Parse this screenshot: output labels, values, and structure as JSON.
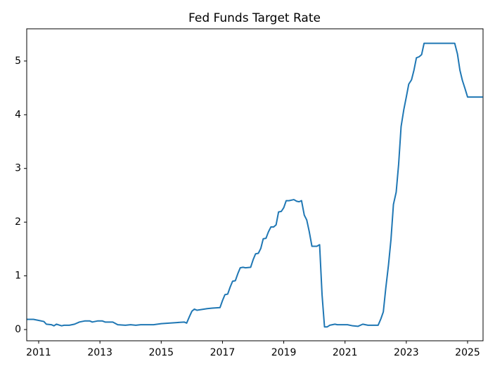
{
  "chart_data": {
    "type": "line",
    "title": "Fed Funds Target Rate",
    "x": [
      2010.62,
      2010.83,
      2011.0,
      2011.17,
      2011.25,
      2011.42,
      2011.5,
      2011.58,
      2011.75,
      2011.83,
      2012.0,
      2012.17,
      2012.33,
      2012.5,
      2012.67,
      2012.75,
      2012.92,
      2013.08,
      2013.17,
      2013.42,
      2013.58,
      2013.83,
      2014.0,
      2014.17,
      2014.33,
      2014.58,
      2014.75,
      2015.0,
      2015.5,
      2015.75,
      2015.83,
      2015.92,
      2016.0,
      2016.08,
      2016.17,
      2016.5,
      2016.67,
      2016.92,
      2017.0,
      2017.08,
      2017.17,
      2017.25,
      2017.33,
      2017.42,
      2017.5,
      2017.58,
      2017.67,
      2017.75,
      2017.92,
      2018.0,
      2018.08,
      2018.17,
      2018.25,
      2018.33,
      2018.42,
      2018.5,
      2018.58,
      2018.67,
      2018.75,
      2018.83,
      2018.92,
      2019.0,
      2019.08,
      2019.17,
      2019.33,
      2019.42,
      2019.5,
      2019.58,
      2019.67,
      2019.75,
      2019.83,
      2019.92,
      2020.0,
      2020.08,
      2020.17,
      2020.25,
      2020.33,
      2020.42,
      2020.5,
      2020.67,
      2020.75,
      2021.0,
      2021.08,
      2021.25,
      2021.42,
      2021.58,
      2021.75,
      2022.0,
      2022.08,
      2022.17,
      2022.25,
      2022.33,
      2022.42,
      2022.5,
      2022.58,
      2022.67,
      2022.75,
      2022.83,
      2022.92,
      2023.0,
      2023.08,
      2023.17,
      2023.25,
      2023.33,
      2023.42,
      2023.5,
      2023.58,
      2024.58,
      2024.67,
      2024.75,
      2024.83,
      2024.92,
      2025.0,
      2025.5
    ],
    "series": [
      {
        "color": "#1f77b4",
        "values": [
          0.19,
          0.19,
          0.17,
          0.15,
          0.1,
          0.09,
          0.07,
          0.1,
          0.07,
          0.08,
          0.08,
          0.1,
          0.14,
          0.16,
          0.16,
          0.14,
          0.16,
          0.16,
          0.14,
          0.14,
          0.09,
          0.08,
          0.09,
          0.08,
          0.09,
          0.09,
          0.09,
          0.11,
          0.13,
          0.14,
          0.12,
          0.24,
          0.34,
          0.38,
          0.36,
          0.39,
          0.4,
          0.41,
          0.54,
          0.65,
          0.66,
          0.79,
          0.9,
          0.91,
          1.04,
          1.15,
          1.16,
          1.15,
          1.16,
          1.3,
          1.41,
          1.42,
          1.51,
          1.69,
          1.7,
          1.82,
          1.91,
          1.91,
          1.95,
          2.19,
          2.2,
          2.27,
          2.4,
          2.4,
          2.42,
          2.39,
          2.38,
          2.4,
          2.13,
          2.04,
          1.83,
          1.55,
          1.55,
          1.55,
          1.58,
          0.65,
          0.05,
          0.05,
          0.08,
          0.1,
          0.09,
          0.09,
          0.09,
          0.07,
          0.06,
          0.1,
          0.08,
          0.08,
          0.08,
          0.2,
          0.33,
          0.77,
          1.21,
          1.68,
          2.33,
          2.56,
          3.08,
          3.78,
          4.1,
          4.33,
          4.57,
          4.65,
          4.83,
          5.06,
          5.08,
          5.12,
          5.33,
          5.33,
          5.13,
          4.83,
          4.64,
          4.48,
          4.33,
          4.33
        ]
      }
    ],
    "xlim": [
      2010.61,
      2025.505
    ],
    "xticks": [
      2011,
      2013,
      2015,
      2017,
      2019,
      2021,
      2023,
      2025
    ],
    "ylim": [
      -0.209,
      5.6
    ],
    "yticks": [
      0,
      1,
      2,
      3,
      4,
      5
    ],
    "grid": false
  }
}
